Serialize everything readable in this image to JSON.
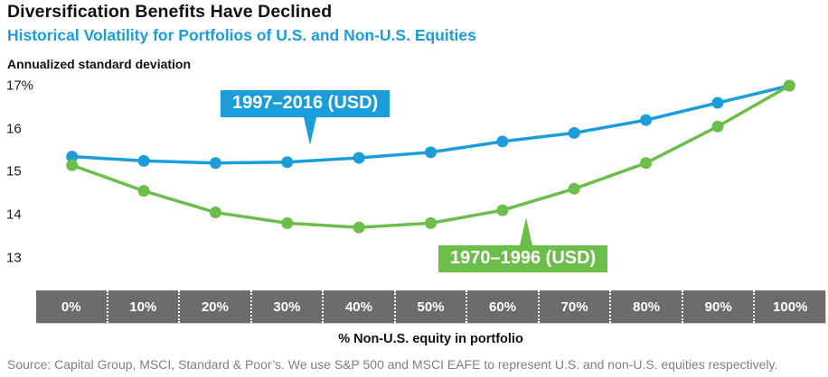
{
  "header": {
    "title": "Diversification Benefits Have Declined",
    "subtitle": "Historical Volatility for Portfolios of U.S. and Non-U.S. Equities"
  },
  "chart_data": {
    "type": "line",
    "title": "Diversification Benefits Have Declined",
    "subtitle": "Historical Volatility for Portfolios of U.S. and Non-U.S. Equities",
    "xlabel": "% Non-U.S. equity in portfolio",
    "ylabel": "Annualized standard deviation",
    "x": [
      0,
      10,
      20,
      30,
      40,
      50,
      60,
      70,
      80,
      90,
      100
    ],
    "x_tick_labels": [
      "0%",
      "10%",
      "20%",
      "30%",
      "40%",
      "50%",
      "60%",
      "70%",
      "80%",
      "90%",
      "100%"
    ],
    "ylim": [
      13,
      17
    ],
    "y_ticks": [
      {
        "label": "17%",
        "value": 17
      },
      {
        "label": "16",
        "value": 16
      },
      {
        "label": "15",
        "value": 15
      },
      {
        "label": "14",
        "value": 14
      },
      {
        "label": "13",
        "value": 13
      }
    ],
    "grid": false,
    "legend_position": "callouts-on-plot",
    "series": [
      {
        "name": "1997–2016 (USD)",
        "color": "#1a9dd9",
        "values": [
          15.35,
          15.25,
          15.2,
          15.22,
          15.32,
          15.45,
          15.7,
          15.9,
          16.2,
          16.6,
          17.0
        ]
      },
      {
        "name": "1970–1996 (USD)",
        "color": "#6cbe4b",
        "values": [
          15.15,
          14.55,
          14.05,
          13.8,
          13.7,
          13.8,
          14.1,
          14.6,
          15.2,
          16.05,
          17.0
        ]
      }
    ]
  },
  "footer": {
    "source": "Source: Capital Group, MSCI, Standard & Poor’s. We use S&P 500 and MSCI EAFE to represent U.S. and non-U.S. equities respectively."
  },
  "colors": {
    "accent_blue": "#1a9dd9",
    "accent_green": "#6cbe4b",
    "band_gray": "#6c6c6c",
    "source_gray": "#808080"
  }
}
